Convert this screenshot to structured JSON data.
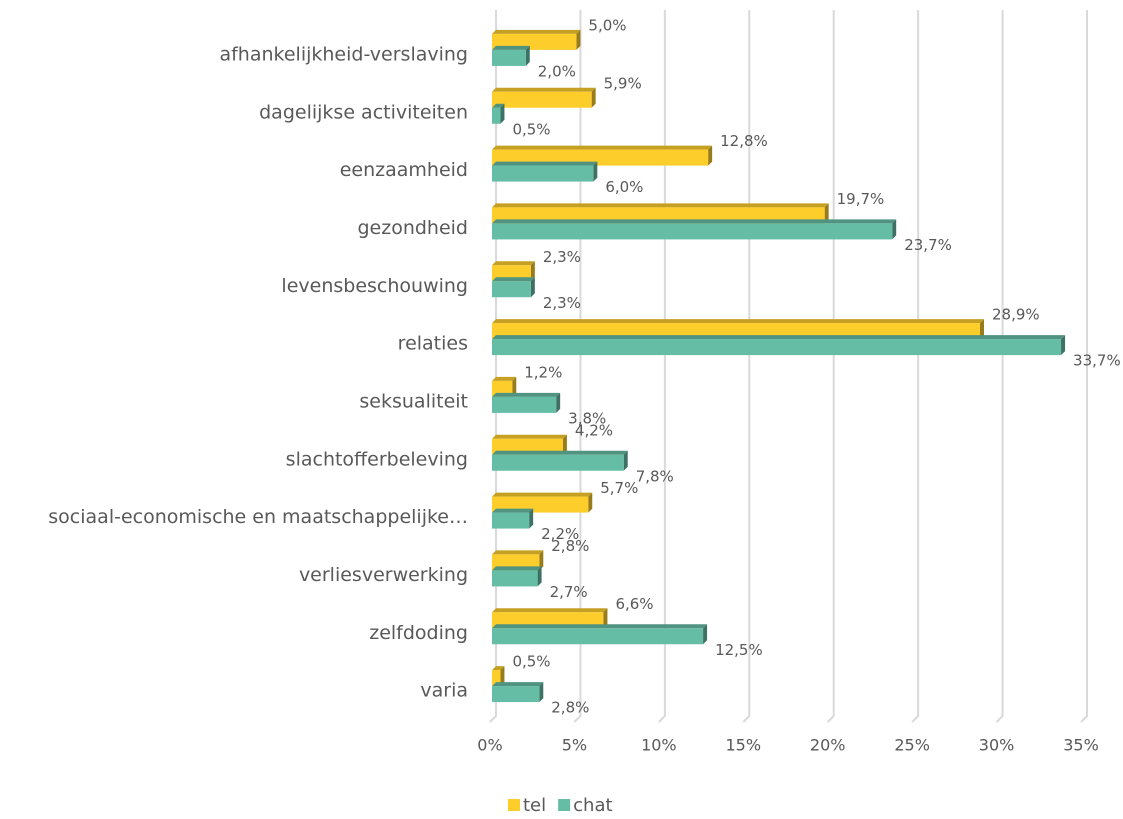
{
  "chart_data": {
    "type": "bar",
    "orientation": "horizontal",
    "categories": [
      "afhankelijkheid-verslaving",
      "dagelijkse activiteiten",
      "eenzaamheid",
      "gezondheid",
      "levensbeschouwing",
      "relaties",
      "seksualiteit",
      "slachtofferbeleving",
      "sociaal-economische en maatschappelijke…",
      "verliesverwerking",
      "zelfdoding",
      "varia"
    ],
    "series": [
      {
        "name": "tel",
        "color": "#fdcd2b",
        "values": [
          5.0,
          5.9,
          12.8,
          19.7,
          2.3,
          28.9,
          1.2,
          4.2,
          5.7,
          2.8,
          6.6,
          0.5
        ],
        "value_labels": [
          "5,0%",
          "5,9%",
          "12,8%",
          "19,7%",
          "2,3%",
          "28,9%",
          "1,2%",
          "4,2%",
          "5,7%",
          "2,8%",
          "6,6%",
          "0,5%"
        ]
      },
      {
        "name": "chat",
        "color": "#66bda6",
        "values": [
          2.0,
          0.5,
          6.0,
          23.7,
          2.3,
          33.7,
          3.8,
          7.8,
          2.2,
          2.7,
          12.5,
          2.8
        ],
        "value_labels": [
          "2,0%",
          "0,5%",
          "6,0%",
          "23,7%",
          "2,3%",
          "33,7%",
          "3,8%",
          "7,8%",
          "2,2%",
          "2,7%",
          "12,5%",
          "2,8%"
        ]
      }
    ],
    "xlim": [
      0,
      35
    ],
    "xticks": [
      {
        "value": 0,
        "label": "0%"
      },
      {
        "value": 5,
        "label": "5%"
      },
      {
        "value": 10,
        "label": "10%"
      },
      {
        "value": 15,
        "label": "15%"
      },
      {
        "value": 20,
        "label": "20%"
      },
      {
        "value": 25,
        "label": "25%"
      },
      {
        "value": 30,
        "label": "30%"
      },
      {
        "value": 35,
        "label": "35%"
      }
    ],
    "grid": true,
    "legend": "bottom"
  }
}
